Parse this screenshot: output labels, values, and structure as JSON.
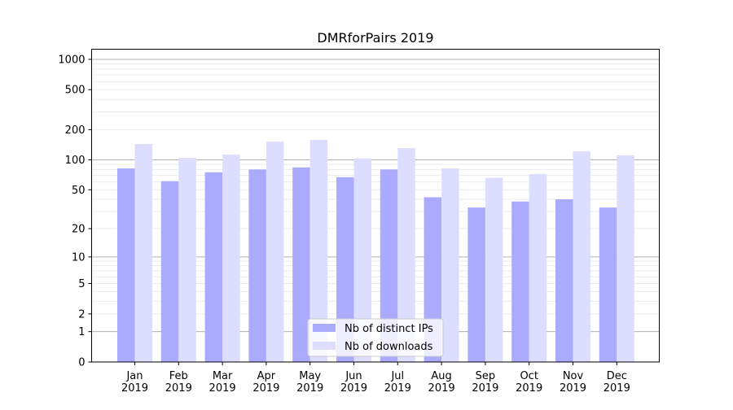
{
  "chart_data": {
    "type": "bar",
    "title": "DMRforPairs 2019",
    "xlabel": "",
    "ylabel": "",
    "yscale": "symlog (log10(1+y))",
    "ylim": [
      0,
      1300
    ],
    "yticks": [
      0,
      1,
      2,
      5,
      10,
      20,
      50,
      100,
      200,
      500,
      1000
    ],
    "ytick_labels": [
      "0",
      "1",
      "2",
      "5",
      "10",
      "20",
      "50",
      "100",
      "200",
      "500",
      "1000"
    ],
    "grid": true,
    "legend_position": "bottom-center",
    "categories": [
      "Jan\n2019",
      "Feb\n2019",
      "Mar\n2019",
      "Apr\n2019",
      "May\n2019",
      "Jun\n2019",
      "Jul\n2019",
      "Aug\n2019",
      "Sep\n2019",
      "Oct\n2019",
      "Nov\n2019",
      "Dec\n2019"
    ],
    "category_lines": [
      [
        "Jan",
        "2019"
      ],
      [
        "Feb",
        "2019"
      ],
      [
        "Mar",
        "2019"
      ],
      [
        "Apr",
        "2019"
      ],
      [
        "May",
        "2019"
      ],
      [
        "Jun",
        "2019"
      ],
      [
        "Jul",
        "2019"
      ],
      [
        "Aug",
        "2019"
      ],
      [
        "Sep",
        "2019"
      ],
      [
        "Oct",
        "2019"
      ],
      [
        "Nov",
        "2019"
      ],
      [
        "Dec",
        "2019"
      ]
    ],
    "series": [
      {
        "name": "Nb of distinct IPs",
        "color": "#aaaaff",
        "values": [
          82,
          61,
          75,
          80,
          84,
          67,
          80,
          42,
          33,
          38,
          40,
          33
        ]
      },
      {
        "name": "Nb of downloads",
        "color": "#ddddff",
        "values": [
          144,
          105,
          113,
          152,
          158,
          103,
          131,
          82,
          66,
          72,
          122,
          111
        ]
      }
    ]
  }
}
